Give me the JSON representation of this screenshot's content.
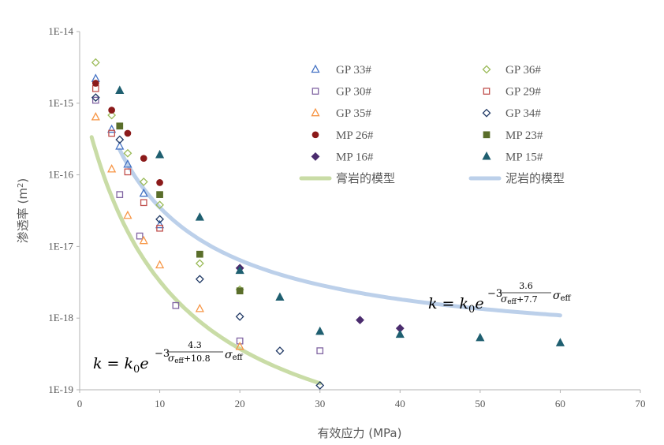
{
  "chart_data": {
    "type": "scatter",
    "title": "",
    "xlabel": "有效应力 (MPa)",
    "ylabel": "渗透率 (m²)",
    "ylabel_parts": {
      "main": "渗透率 (m",
      "sup": "2",
      "end": ")"
    },
    "xlim": [
      0,
      70
    ],
    "ylim": [
      1e-19,
      1e-14
    ],
    "yscale": "log",
    "grid": false,
    "xticks": [
      "0",
      "10",
      "20",
      "30",
      "40",
      "50",
      "60",
      "70"
    ],
    "yticks": [
      "1E-19",
      "1E-18",
      "1E-17",
      "1E-16",
      "1E-15",
      "1E-14"
    ],
    "legend_position": "top-right",
    "colors": {
      "gp33": "#4472c4",
      "gp36": "#9bbb59",
      "gp30": "#8064a2",
      "gp29": "#c0504d",
      "gp35": "#f79646",
      "gp34": "#1f3864",
      "mp26": "#8b1a1a",
      "mp23": "#5a6e2b",
      "mp16": "#4b2c6e",
      "mp15": "#1f5f70",
      "gypsum_model": "#c9dca6",
      "mudstone_model": "#bcd0ea",
      "axis": "#b3b3b3"
    },
    "series": [
      {
        "name": "GP 33#",
        "key": "gp33",
        "marker": "triangle-open",
        "points": [
          [
            2,
            2.2e-15
          ],
          [
            4,
            4.3e-16
          ],
          [
            5,
            2.5e-16
          ],
          [
            6,
            1.4e-16
          ],
          [
            8,
            5.5e-17
          ],
          [
            10,
            2e-17
          ]
        ]
      },
      {
        "name": "GP 36#",
        "key": "gp36",
        "marker": "diamond-open",
        "points": [
          [
            2,
            3.7e-15
          ],
          [
            4,
            6.8e-16
          ],
          [
            6,
            2e-16
          ],
          [
            8,
            8e-17
          ],
          [
            10,
            3.8e-17
          ],
          [
            15,
            5.8e-18
          ],
          [
            20,
            2.5e-18
          ]
        ]
      },
      {
        "name": "GP 30#",
        "key": "gp30",
        "marker": "square-open",
        "points": [
          [
            2,
            1.1e-15
          ],
          [
            5,
            5.3e-17
          ],
          [
            7.5,
            1.4e-17
          ],
          [
            12,
            1.5e-18
          ],
          [
            20,
            4.8e-19
          ],
          [
            30,
            3.5e-19
          ]
        ]
      },
      {
        "name": "GP 29#",
        "key": "gp29",
        "marker": "square-open",
        "points": [
          [
            2,
            1.6e-15
          ],
          [
            4,
            3.8e-16
          ],
          [
            6,
            1.1e-16
          ],
          [
            8,
            4.1e-17
          ],
          [
            10,
            1.8e-17
          ]
        ]
      },
      {
        "name": "GP 35#",
        "key": "gp35",
        "marker": "triangle-open",
        "points": [
          [
            2,
            6.4e-16
          ],
          [
            4,
            1.2e-16
          ],
          [
            6,
            2.7e-17
          ],
          [
            8,
            1.2e-17
          ],
          [
            10,
            5.5e-18
          ],
          [
            15,
            1.35e-18
          ],
          [
            20,
            4e-19
          ]
        ]
      },
      {
        "name": "GP 34#",
        "key": "gp34",
        "marker": "diamond-open",
        "points": [
          [
            2,
            1.2e-15
          ],
          [
            5,
            3.1e-16
          ],
          [
            10,
            2.4e-17
          ],
          [
            15,
            3.5e-18
          ],
          [
            20,
            1.05e-18
          ],
          [
            25,
            3.5e-19
          ],
          [
            30,
            1.15e-19
          ]
        ]
      },
      {
        "name": "MP 26#",
        "key": "mp26",
        "marker": "circle",
        "points": [
          [
            2,
            1.9e-15
          ],
          [
            4,
            8e-16
          ],
          [
            6,
            3.8e-16
          ],
          [
            8,
            1.7e-16
          ],
          [
            10,
            7.8e-17
          ]
        ]
      },
      {
        "name": "MP 23#",
        "key": "mp23",
        "marker": "square",
        "points": [
          [
            5,
            4.8e-16
          ],
          [
            10,
            5.3e-17
          ],
          [
            15,
            7.8e-18
          ],
          [
            20,
            2.4e-18
          ]
        ]
      },
      {
        "name": "MP 16#",
        "key": "mp16",
        "marker": "diamond",
        "points": [
          [
            20,
            5e-18
          ],
          [
            35,
            9.4e-19
          ],
          [
            40,
            7.2e-19
          ]
        ]
      },
      {
        "name": "MP 15#",
        "key": "mp15",
        "marker": "triangle",
        "points": [
          [
            5,
            1.5e-15
          ],
          [
            10,
            1.9e-16
          ],
          [
            15,
            2.55e-17
          ],
          [
            20,
            4.6e-18
          ],
          [
            25,
            1.95e-18
          ],
          [
            30,
            6.5e-19
          ],
          [
            40,
            5.9e-19
          ],
          [
            50,
            5.3e-19
          ],
          [
            60,
            4.5e-19
          ]
        ]
      }
    ],
    "models": [
      {
        "name": "膏岩的模型",
        "key": "gypsum_model",
        "k0": 1.62e-15,
        "a": 4.3,
        "b": 10.8,
        "x_start": 1.5,
        "x_end": 30
      },
      {
        "name": "泥岩的模型",
        "key": "mudstone_model",
        "k0": 1.57e-14,
        "a": 3.6,
        "b": 7.7,
        "x_start": 5,
        "x_end": 60
      }
    ],
    "equations": [
      {
        "key": "gypsum_eq",
        "lhs": "k = k",
        "sub0": "0",
        "e": "e",
        "exp_prefix": "−3",
        "num": "4.3",
        "den": "σ",
        "den_sub": "eff",
        "den_tail": "+10.8",
        "tail": "σ",
        "tail_sub": "eff"
      },
      {
        "key": "mudstone_eq",
        "lhs": "k = k",
        "sub0": "0",
        "e": "e",
        "exp_prefix": "−3",
        "num": "3.6",
        "den": "σ",
        "den_sub": "eff",
        "den_tail": "+7.7",
        "tail": "σ",
        "tail_sub": "eff"
      }
    ]
  }
}
